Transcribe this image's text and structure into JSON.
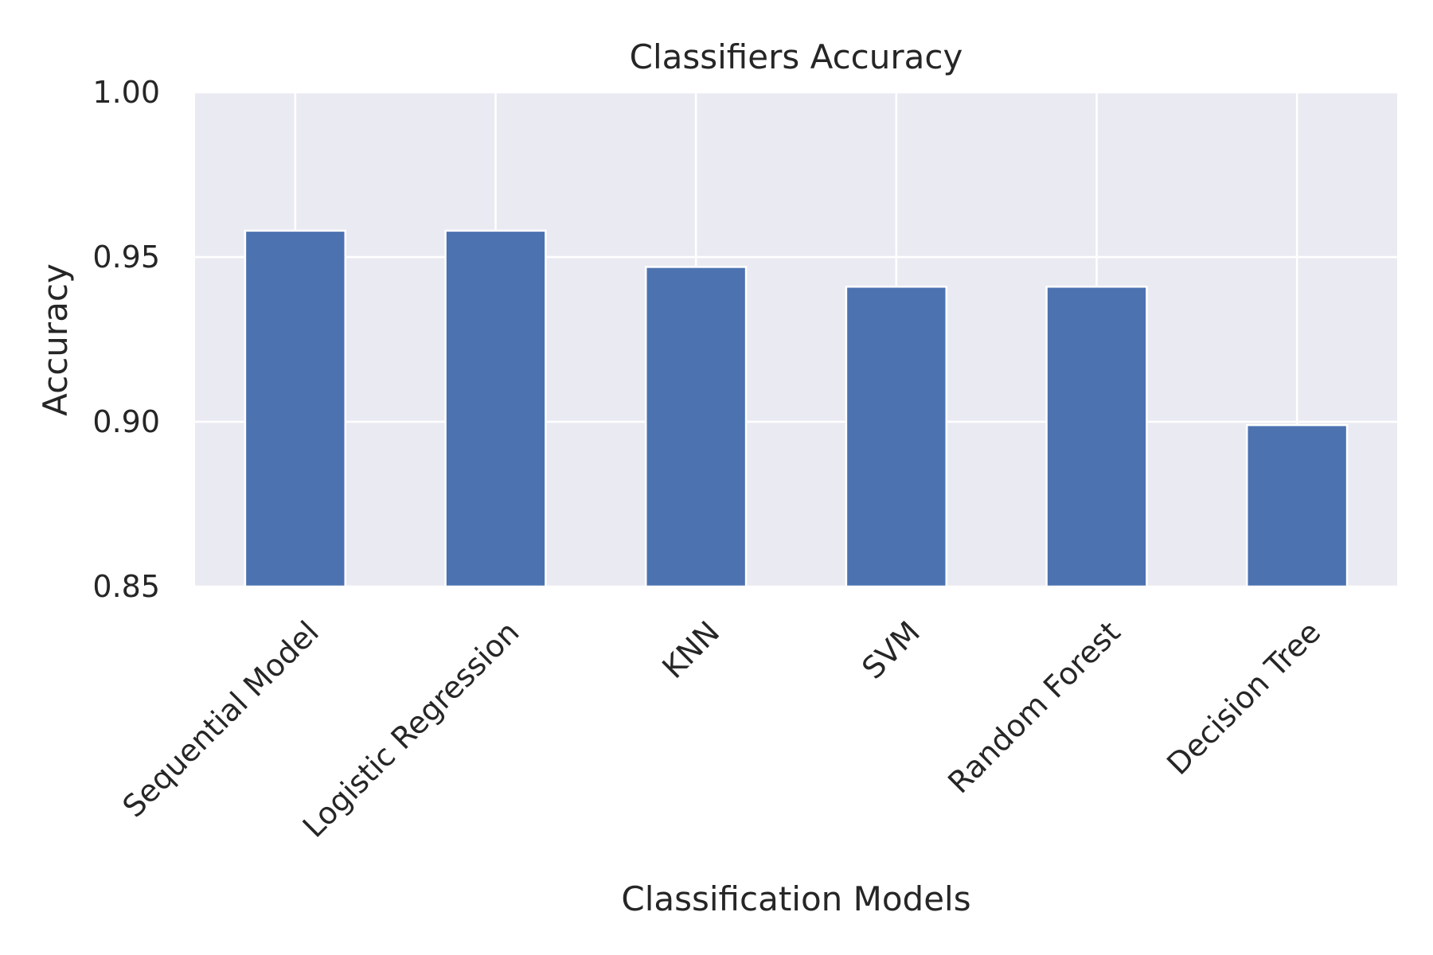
{
  "chart_data": {
    "type": "bar",
    "title": "Classifiers Accuracy",
    "xlabel": "Classification Models",
    "ylabel": "Accuracy",
    "categories": [
      "Sequential Model",
      "Logistic Regression",
      "KNN",
      "SVM",
      "Random Forest",
      "Decision Tree"
    ],
    "values": [
      0.958,
      0.958,
      0.947,
      0.941,
      0.941,
      0.899
    ],
    "ylim": [
      0.85,
      1.0
    ],
    "yticks": [
      "0.85",
      "0.90",
      "0.95",
      "1.00"
    ],
    "ytick_values": [
      0.85,
      0.9,
      0.95,
      1.0
    ],
    "grid": true,
    "legend": "none",
    "colors": {
      "bar": "#4c72b0",
      "plot_background": "#eaeaf2",
      "grid": "#ffffff",
      "text": "#262626"
    }
  }
}
